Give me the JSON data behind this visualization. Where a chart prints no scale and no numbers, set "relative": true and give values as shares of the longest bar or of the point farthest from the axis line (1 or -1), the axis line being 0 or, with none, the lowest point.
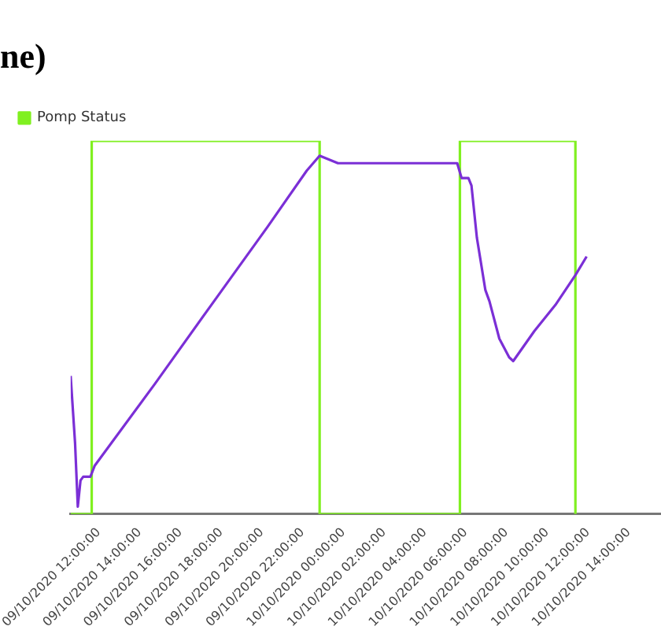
{
  "chart_data": {
    "type": "line",
    "title": "ne)",
    "relative": true,
    "legend": "top left",
    "grid": false,
    "marker": "none",
    "line_style": "solid",
    "xlim": [
      "2020-10-09T10:37",
      "2020-10-10T15:35"
    ],
    "xticks": [
      {
        "value": "2020-10-09T12:00",
        "label": "09/10/2020 12:00:00"
      },
      {
        "value": "2020-10-09T14:00",
        "label": "09/10/2020 14:00:00"
      },
      {
        "value": "2020-10-09T16:00",
        "label": "09/10/2020 16:00:00"
      },
      {
        "value": "2020-10-09T18:00",
        "label": "09/10/2020 18:00:00"
      },
      {
        "value": "2020-10-09T20:00",
        "label": "09/10/2020 20:00:00"
      },
      {
        "value": "2020-10-09T22:00",
        "label": "09/10/2020 22:00:00"
      },
      {
        "value": "2020-10-10T00:00",
        "label": "10/10/2020 00:00:00"
      },
      {
        "value": "2020-10-10T02:00",
        "label": "10/10/2020 02:00:00"
      },
      {
        "value": "2020-10-10T04:00",
        "label": "10/10/2020 04:00:00"
      },
      {
        "value": "2020-10-10T06:00",
        "label": "10/10/2020 06:00:00"
      },
      {
        "value": "2020-10-10T08:00",
        "label": "10/10/2020 08:00:00"
      },
      {
        "value": "2020-10-10T10:00",
        "label": "10/10/2020 10:00:00"
      },
      {
        "value": "2020-10-10T12:00",
        "label": "10/10/2020 12:00:00"
      },
      {
        "value": "2020-10-10T14:00",
        "label": "10/10/2020 14:00:00"
      }
    ],
    "series": [
      {
        "type": "line",
        "color": "#7b2fd6",
        "x": [
          "2020-10-09T10:37",
          "2020-10-09T10:50",
          "2020-10-09T10:58",
          "2020-10-09T11:06",
          "2020-10-09T11:14",
          "2020-10-09T11:35",
          "2020-10-09T11:48",
          "2020-10-09T14:46",
          "2020-10-09T17:31",
          "2020-10-09T20:17",
          "2020-10-09T22:12",
          "2020-10-09T22:50",
          "2020-10-09T23:44",
          "2020-10-10T02:29",
          "2020-10-10T05:35",
          "2020-10-10T05:48",
          "2020-10-10T06:08",
          "2020-10-10T06:17",
          "2020-10-10T06:33",
          "2020-10-10T06:58",
          "2020-10-10T07:10",
          "2020-10-10T07:39",
          "2020-10-10T08:08",
          "2020-10-10T08:20",
          "2020-10-10T09:22",
          "2020-10-10T10:24",
          "2020-10-10T11:23",
          "2020-10-10T11:56"
        ],
        "values": [
          0.37,
          0.19,
          0.02,
          0.09,
          0.1,
          0.1,
          0.13,
          0.35,
          0.56,
          0.77,
          0.92,
          0.96,
          0.94,
          0.94,
          0.94,
          0.9,
          0.9,
          0.88,
          0.74,
          0.6,
          0.57,
          0.47,
          0.42,
          0.41,
          0.49,
          0.56,
          0.64,
          0.69
        ]
      },
      {
        "type": "step",
        "name": "Pomp Status",
        "color": "#80f020",
        "x": [
          "2020-10-09T10:37",
          "2020-10-09T11:39",
          "2020-10-09T22:50",
          "2020-10-10T05:43",
          "2020-10-10T11:23"
        ],
        "values": [
          0,
          1,
          0,
          1,
          0
        ]
      }
    ]
  }
}
